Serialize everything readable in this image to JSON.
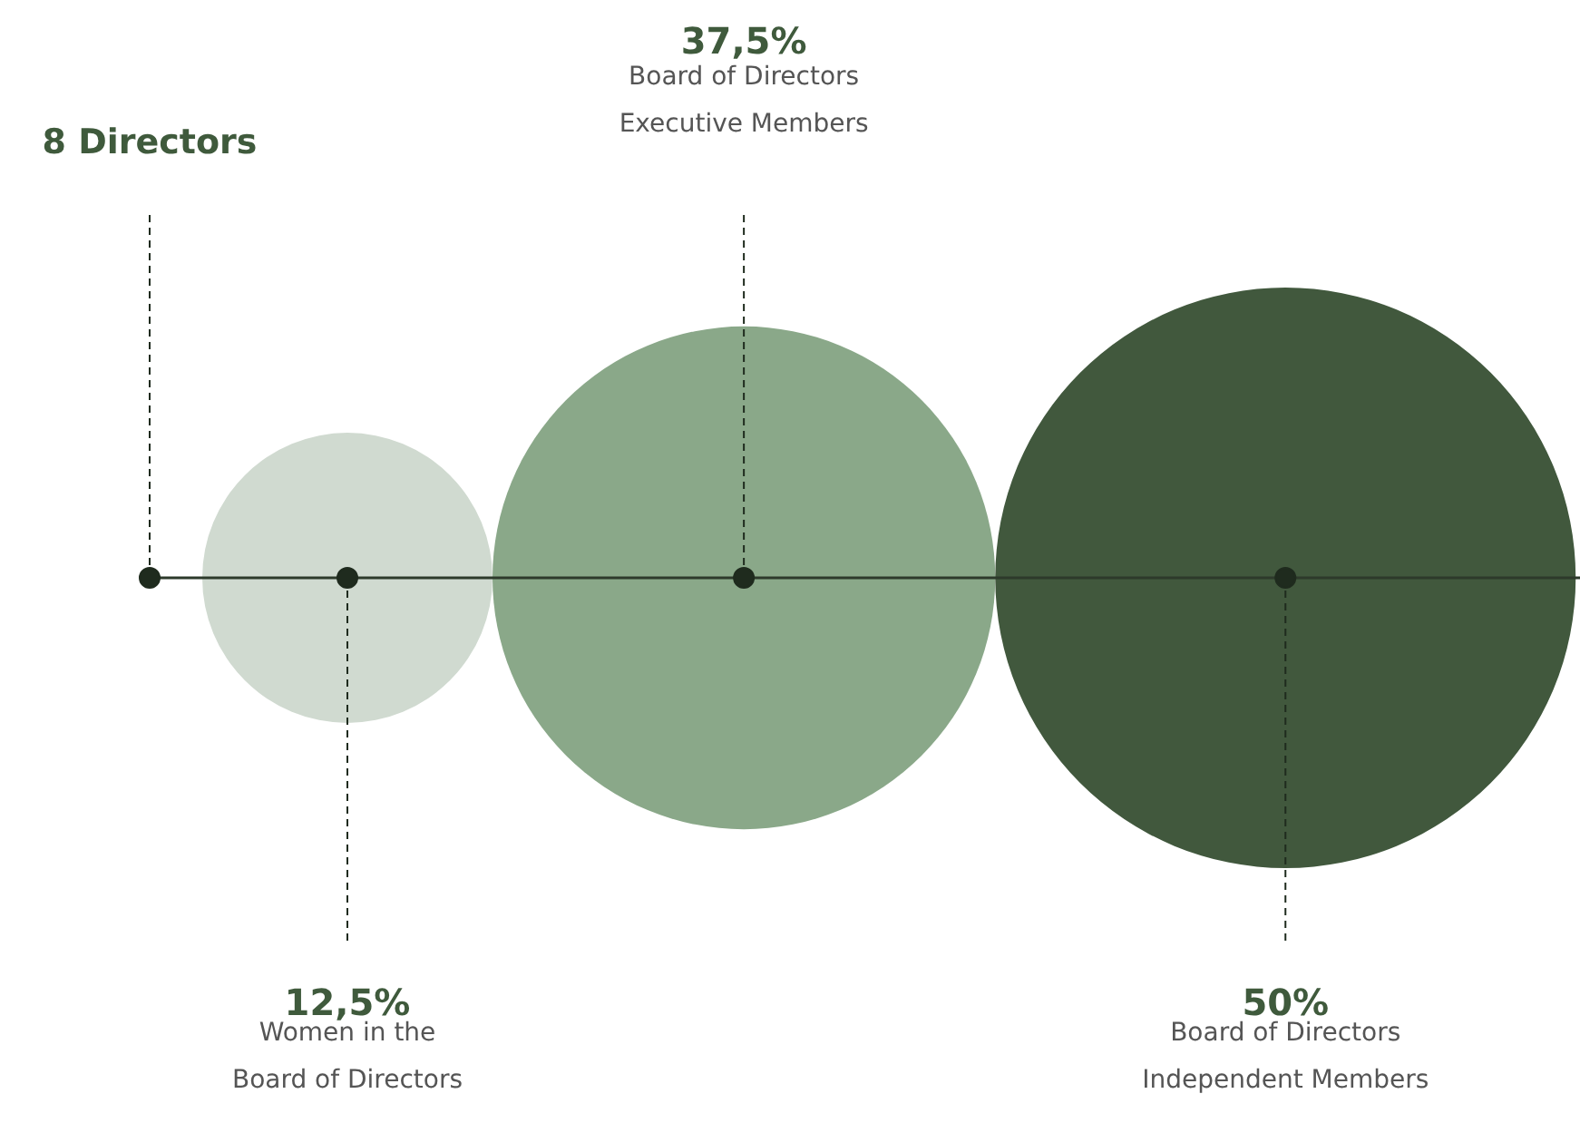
{
  "chart_data": {
    "type": "other",
    "categories": [
      "Women in the\nBoard of Directors",
      "Board of Directors\nExecutive Members",
      "Board of Directors\nIndependent Members"
    ],
    "values": [
      12.5,
      37.5,
      50
    ],
    "value_labels": [
      "12,5%",
      "37,5%",
      "50%"
    ],
    "colors": [
      "#d0dad0",
      "#8aa889",
      "#41583d"
    ],
    "annotations": [
      "8 Directors"
    ]
  }
}
